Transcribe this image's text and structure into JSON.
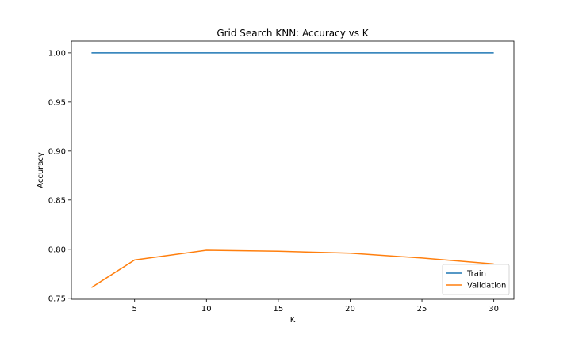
{
  "chart_data": {
    "type": "line",
    "title": "Grid Search KNN: Accuracy vs K",
    "xlabel": "K",
    "ylabel": "Accuracy",
    "xlim": [
      0.6,
      31.4
    ],
    "ylim": [
      0.749,
      1.012
    ],
    "xticks": [
      5,
      10,
      15,
      20,
      25,
      30
    ],
    "yticks": [
      0.75,
      0.8,
      0.85,
      0.9,
      0.95,
      1.0
    ],
    "grid": false,
    "legend": "lower-right",
    "x": [
      2,
      5,
      10,
      15,
      20,
      25,
      30
    ],
    "series": [
      {
        "name": "Train",
        "color": "#1f77b4",
        "values": [
          1.0,
          1.0,
          1.0,
          1.0,
          1.0,
          1.0,
          1.0
        ]
      },
      {
        "name": "Validation",
        "color": "#ff7f0e",
        "values": [
          0.761,
          0.789,
          0.799,
          0.798,
          0.796,
          0.791,
          0.785
        ]
      }
    ]
  }
}
